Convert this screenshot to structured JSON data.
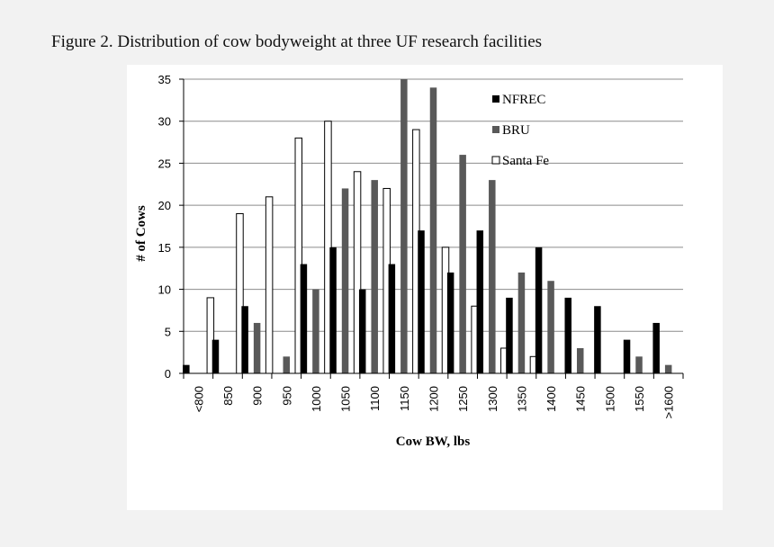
{
  "figure": {
    "caption": "Figure 2.  Distribution of cow bodyweight at three UF research facilities"
  },
  "colors": {
    "page_bg": "#f2f2f2",
    "panel_bg": "#ffffff",
    "gridline": "#8c8c8c"
  },
  "chart_data": {
    "type": "bar",
    "title": "",
    "xlabel": "Cow BW, lbs",
    "ylabel": "# of Cows",
    "ylim": [
      0,
      35
    ],
    "yticks": [
      0,
      5,
      10,
      15,
      20,
      25,
      30,
      35
    ],
    "grid": true,
    "legend_position": "top-right",
    "categories": [
      "<800",
      "850",
      "900",
      "950",
      "1000",
      "1050",
      "1100",
      "1150",
      "1200",
      "1250",
      "1300",
      "1350",
      "1400",
      "1450",
      "1500",
      "1550",
      ">1600"
    ],
    "series": [
      {
        "name": "NFREC",
        "color": "#000000",
        "values": [
          1,
          4,
          8,
          0,
          13,
          15,
          10,
          13,
          17,
          12,
          17,
          9,
          15,
          9,
          8,
          4,
          6
        ]
      },
      {
        "name": "BRU",
        "color": "#595959",
        "values": [
          0,
          0,
          6,
          2,
          10,
          22,
          23,
          35,
          34,
          26,
          23,
          12,
          11,
          3,
          0,
          2,
          1
        ]
      },
      {
        "name": "Santa Fe",
        "color": "#ffffff",
        "stroke": "#000000",
        "values": [
          9,
          19,
          21,
          28,
          30,
          24,
          22,
          29,
          15,
          8,
          3,
          2,
          0,
          0,
          0,
          0,
          0
        ]
      }
    ]
  }
}
